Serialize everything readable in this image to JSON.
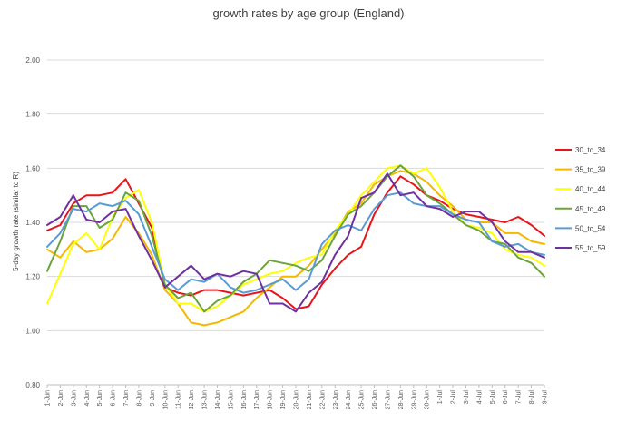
{
  "chart_data": {
    "type": "line",
    "title": "growth rates by age group (England)",
    "xlabel": "",
    "ylabel": "5-day growth rate (similar to R)",
    "ylim": [
      0.8,
      2.0
    ],
    "yticks": [
      0.8,
      1.0,
      1.2,
      1.4,
      1.6,
      1.8,
      2.0
    ],
    "ytick_labels": [
      "0.80",
      "1.00",
      "1.20",
      "1.40",
      "1.60",
      "1.80",
      "2.00"
    ],
    "grid": "horizontal",
    "legend_position": "right",
    "categories": [
      "1-Jun",
      "2-Jun",
      "3-Jun",
      "4-Jun",
      "5-Jun",
      "6-Jun",
      "7-Jun",
      "8-Jun",
      "9-Jun",
      "10-Jun",
      "11-Jun",
      "12-Jun",
      "13-Jun",
      "14-Jun",
      "15-Jun",
      "16-Jun",
      "17-Jun",
      "18-Jun",
      "19-Jun",
      "20-Jun",
      "21-Jun",
      "22-Jun",
      "23-Jun",
      "24-Jun",
      "25-Jun",
      "26-Jun",
      "27-Jun",
      "28-Jun",
      "29-Jun",
      "30-Jun",
      "1-Jul",
      "2-Jul",
      "3-Jul",
      "4-Jul",
      "5-Jul",
      "6-Jul",
      "7-Jul",
      "8-Jul",
      "9-Jul"
    ],
    "series": [
      {
        "name": "30_to_34",
        "color": "#e8141c",
        "values": [
          1.37,
          1.39,
          1.47,
          1.5,
          1.5,
          1.51,
          1.56,
          1.47,
          1.38,
          1.16,
          1.14,
          1.13,
          1.15,
          1.15,
          1.14,
          1.13,
          1.14,
          1.15,
          1.12,
          1.08,
          1.09,
          1.17,
          1.23,
          1.28,
          1.31,
          1.43,
          1.51,
          1.57,
          1.54,
          1.5,
          1.48,
          1.45,
          1.43,
          1.42,
          1.41,
          1.4,
          1.42,
          1.39,
          1.35
        ]
      },
      {
        "name": "35_to_39",
        "color": "#f5b800",
        "values": [
          1.3,
          1.27,
          1.33,
          1.29,
          1.3,
          1.34,
          1.42,
          1.36,
          1.28,
          1.15,
          1.1,
          1.03,
          1.02,
          1.03,
          1.05,
          1.07,
          1.12,
          1.16,
          1.2,
          1.2,
          1.24,
          1.3,
          1.36,
          1.44,
          1.47,
          1.54,
          1.57,
          1.59,
          1.58,
          1.55,
          1.5,
          1.46,
          1.41,
          1.4,
          1.4,
          1.36,
          1.36,
          1.33,
          1.32
        ]
      },
      {
        "name": "40_to_44",
        "color": "#ffff00",
        "values": [
          1.1,
          1.21,
          1.32,
          1.36,
          1.3,
          1.42,
          1.49,
          1.52,
          1.4,
          1.17,
          1.1,
          1.1,
          1.07,
          1.09,
          1.13,
          1.17,
          1.19,
          1.21,
          1.22,
          1.25,
          1.27,
          1.28,
          1.37,
          1.43,
          1.5,
          1.55,
          1.6,
          1.61,
          1.58,
          1.6,
          1.53,
          1.44,
          1.39,
          1.38,
          1.36,
          1.3,
          1.28,
          1.27,
          1.24
        ]
      },
      {
        "name": "45_to_49",
        "color": "#6ba43a",
        "values": [
          1.22,
          1.33,
          1.46,
          1.46,
          1.38,
          1.41,
          1.51,
          1.48,
          1.35,
          1.17,
          1.12,
          1.14,
          1.07,
          1.11,
          1.13,
          1.18,
          1.21,
          1.26,
          1.25,
          1.24,
          1.22,
          1.26,
          1.35,
          1.43,
          1.46,
          1.51,
          1.57,
          1.61,
          1.57,
          1.5,
          1.47,
          1.43,
          1.39,
          1.37,
          1.33,
          1.32,
          1.27,
          1.25,
          1.2
        ]
      },
      {
        "name": "50_to_54",
        "color": "#5b9bd5",
        "values": [
          1.31,
          1.36,
          1.45,
          1.44,
          1.47,
          1.46,
          1.48,
          1.43,
          1.31,
          1.19,
          1.15,
          1.19,
          1.18,
          1.21,
          1.16,
          1.14,
          1.15,
          1.17,
          1.19,
          1.15,
          1.19,
          1.32,
          1.37,
          1.39,
          1.37,
          1.45,
          1.5,
          1.51,
          1.47,
          1.46,
          1.46,
          1.43,
          1.41,
          1.4,
          1.33,
          1.31,
          1.32,
          1.29,
          1.28
        ]
      },
      {
        "name": "55_to_59",
        "color": "#7030a0",
        "values": [
          1.39,
          1.42,
          1.5,
          1.41,
          1.4,
          1.44,
          1.45,
          1.35,
          1.26,
          1.16,
          1.2,
          1.24,
          1.19,
          1.21,
          1.2,
          1.22,
          1.21,
          1.1,
          1.1,
          1.07,
          1.14,
          1.18,
          1.28,
          1.35,
          1.49,
          1.51,
          1.58,
          1.5,
          1.51,
          1.46,
          1.45,
          1.42,
          1.44,
          1.44,
          1.4,
          1.33,
          1.29,
          1.29,
          1.27
        ]
      }
    ]
  }
}
